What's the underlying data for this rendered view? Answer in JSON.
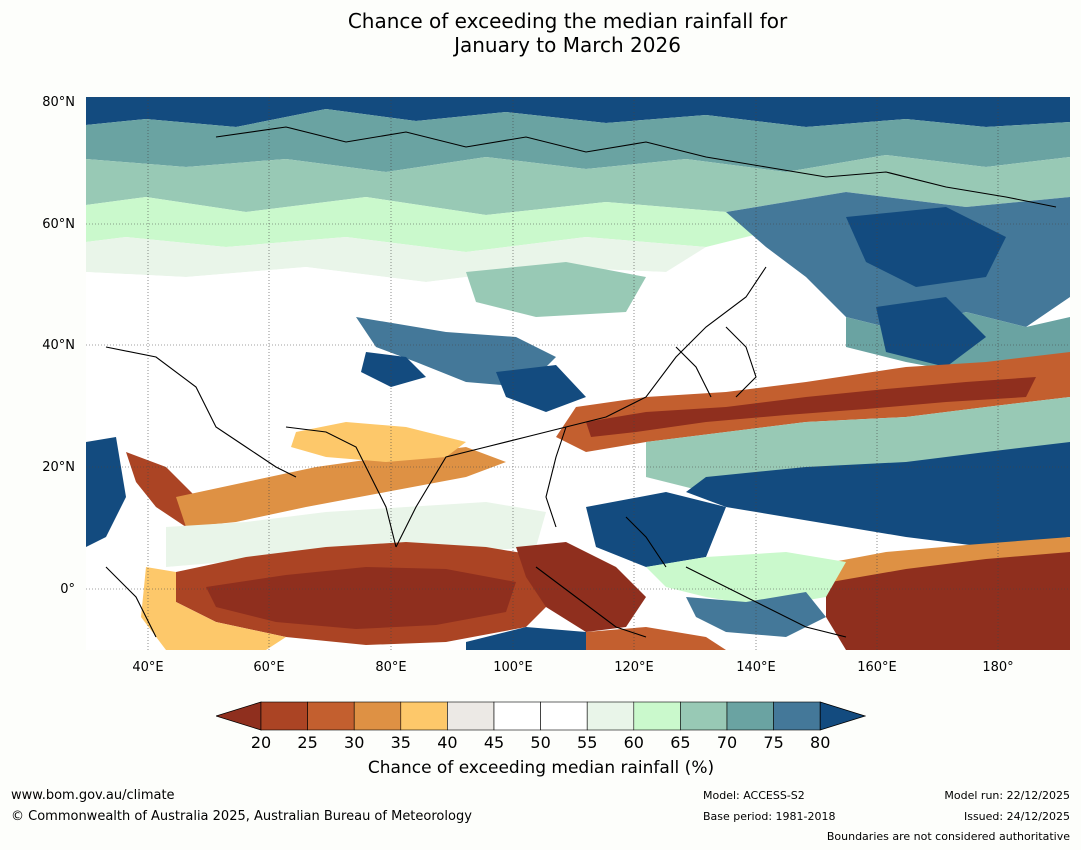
{
  "title_line1": "Chance of exceeding the median rainfall for",
  "title_line2": "January to March 2026",
  "map": {
    "lat_labels": [
      "80°N",
      "60°N",
      "40°N",
      "20°N",
      "0°"
    ],
    "lon_labels": [
      "40°E",
      "60°E",
      "80°E",
      "100°E",
      "120°E",
      "140°E",
      "160°E",
      "180°"
    ],
    "colors": {
      "c20": "#8f2f1e",
      "c25": "#ab4424",
      "c30": "#c35f2f",
      "c35": "#de9144",
      "c40": "#fdc86a",
      "c45": "#ece9e5",
      "c50": "#ffffff",
      "c55": "#ffffff",
      "c60": "#e9f5e9",
      "c65": "#caf9cc",
      "c70": "#98c9b5",
      "c75": "#6aa3a2",
      "c80": "#447899",
      "c85": "#134b7f"
    }
  },
  "colorbar": {
    "ticks": [
      "20",
      "25",
      "30",
      "35",
      "40",
      "45",
      "50",
      "55",
      "60",
      "65",
      "70",
      "75",
      "80"
    ],
    "label": "Chance of exceeding median rainfall (%)"
  },
  "footer": {
    "url": "www.bom.gov.au/climate",
    "copyright": "© Commonwealth of Australia 2025, Australian Bureau of Meteorology",
    "model": "Model: ACCESS-S2",
    "base_period": "Base period: 1981-2018",
    "model_run": "Model run: 22/12/2025",
    "issued": "Issued: 24/12/2025",
    "boundaries": "Boundaries are not considered authoritative"
  }
}
